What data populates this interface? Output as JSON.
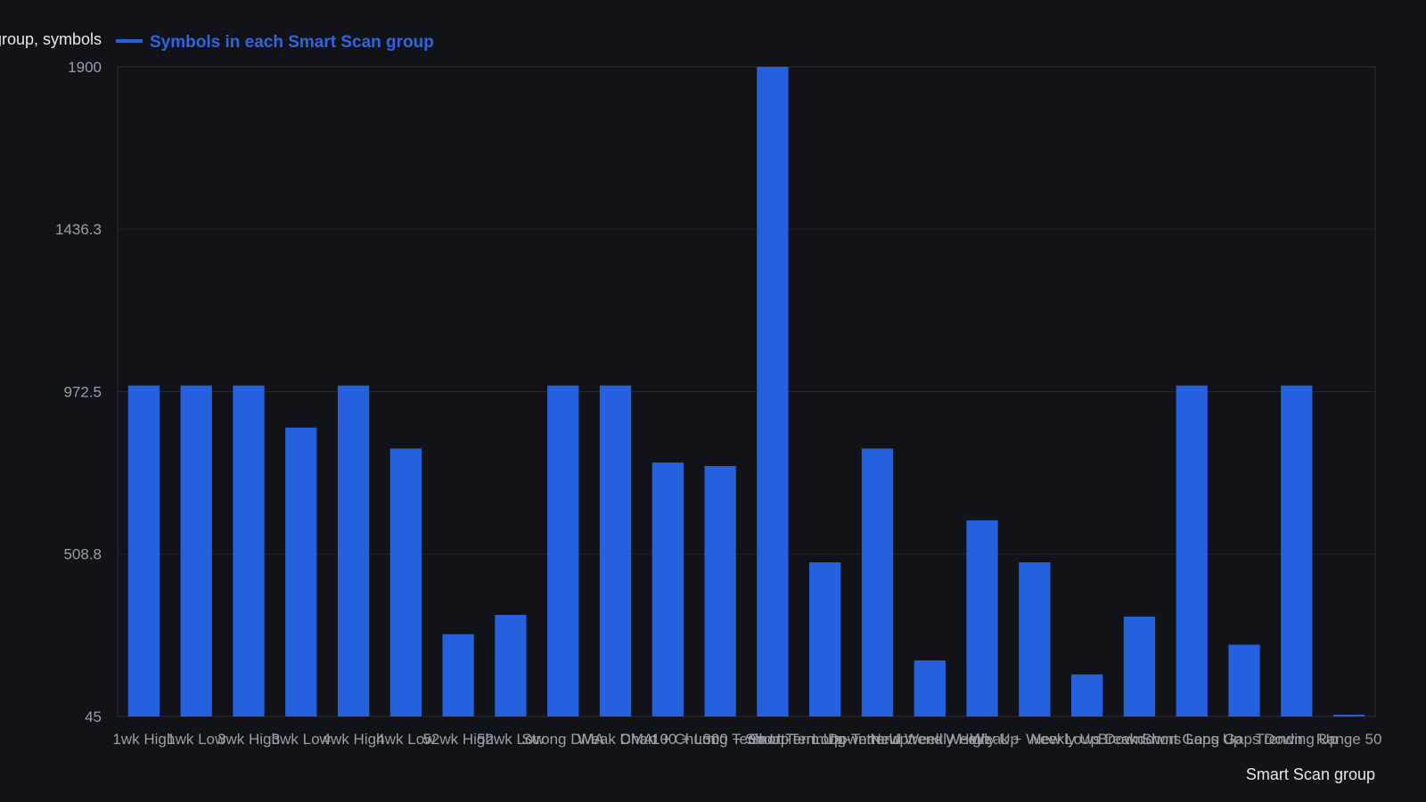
{
  "chart_data": {
    "type": "bar",
    "ylabel": "Smart Scan group, symbols",
    "xlabel": "Smart Scan group",
    "legend": {
      "label": "Symbols in each Smart Scan group",
      "placement": "top-left"
    },
    "ylim": [
      45,
      1900
    ],
    "yticks": [
      "45",
      "508.8",
      "972.5",
      "1436.3",
      "1900"
    ],
    "grid": true,
    "categories": [
      "1wk High",
      "1wk Low",
      "3wk High",
      "3wk Low",
      "4wk High",
      "4wk Low",
      "52wk High",
      "52wk Low",
      "Strong DMA",
      "Weak DMA",
      "Chart + Churn",
      "100 + Long Term Up",
      "300 + Short Term Up",
      "Short-Term Downtrend",
      "Long-Term Uptrend",
      "New Weekly High",
      "Weekly Up",
      "Weak + Weekly Up",
      "New Lows Down",
      "Breakdowns",
      "Short Gaps Up",
      "Long Gaps Down",
      "Trending Up",
      "Range 50"
    ],
    "series": [
      {
        "name": "Symbols in each Smart Scan group",
        "color": "#2560de",
        "values": [
          990,
          990,
          990,
          870,
          990,
          810,
          280,
          335,
          990,
          990,
          770,
          760,
          1900,
          485,
          810,
          205,
          605,
          485,
          165,
          330,
          990,
          250,
          990,
          45
        ]
      }
    ]
  },
  "colors": {
    "background": "#121318",
    "plot_border": "#2a2c33",
    "grid": "#23252b",
    "bar": "#2560de",
    "legend_text": "#2f66e0"
  }
}
